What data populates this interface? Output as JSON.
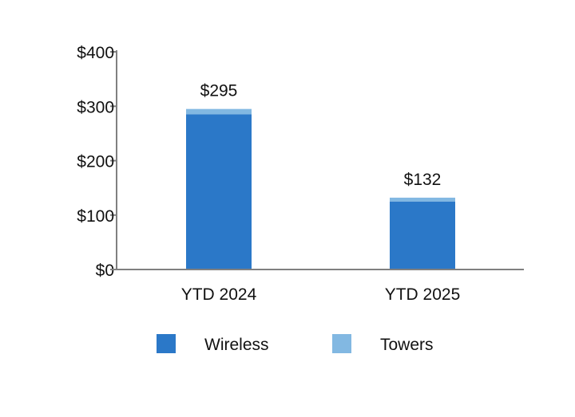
{
  "chart_data": {
    "type": "bar",
    "stacked": true,
    "categories": [
      "YTD 2024",
      "YTD 2025"
    ],
    "series": [
      {
        "name": "Wireless",
        "values": [
          285,
          125
        ],
        "color": "#2b78c8"
      },
      {
        "name": "Towers",
        "values": [
          10,
          7
        ],
        "color": "#82b8e2"
      }
    ],
    "totals": [
      "$295",
      "$132"
    ],
    "ylim": [
      0,
      400
    ],
    "yticks": [
      0,
      100,
      200,
      300,
      400
    ],
    "ytick_labels": [
      "$0",
      "$100",
      "$200",
      "$300",
      "$400"
    ],
    "grid": false,
    "legend_position": "bottom",
    "axis_color": "#808080"
  }
}
